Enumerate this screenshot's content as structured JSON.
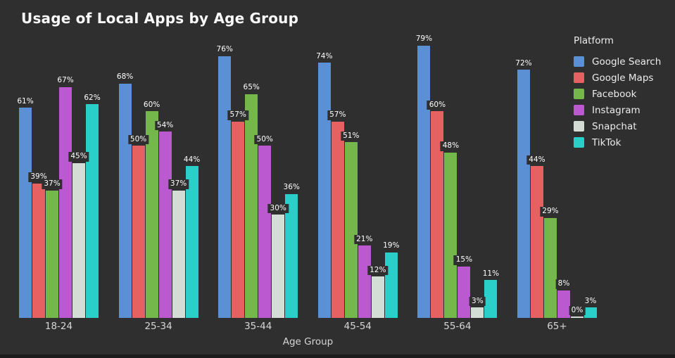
{
  "chart_data": {
    "type": "bar",
    "title": "Usage of Local Apps by Age Group",
    "xlabel": "Age Group",
    "legend_title": "Platform",
    "legend_position": "right",
    "grid": false,
    "ylim": [
      0,
      80
    ],
    "value_suffix": "%",
    "background_color": "#2f2f2f",
    "categories": [
      "18-24",
      "25-34",
      "35-44",
      "45-54",
      "55-64",
      "65+"
    ],
    "series": [
      {
        "name": "Google Search",
        "color": "#5b90d5",
        "values": [
          61,
          68,
          76,
          74,
          79,
          72
        ]
      },
      {
        "name": "Google Maps",
        "color": "#e66161",
        "values": [
          39,
          50,
          57,
          57,
          60,
          44
        ]
      },
      {
        "name": "Facebook",
        "color": "#74b84b",
        "values": [
          37,
          60,
          65,
          51,
          48,
          29
        ]
      },
      {
        "name": "Instagram",
        "color": "#bb5ad0",
        "values": [
          67,
          54,
          50,
          21,
          15,
          8
        ]
      },
      {
        "name": "Snapchat",
        "color": "#d4ddd5",
        "values": [
          45,
          37,
          30,
          12,
          3,
          0
        ]
      },
      {
        "name": "TikTok",
        "color": "#2bcfca",
        "values": [
          62,
          44,
          36,
          19,
          11,
          3
        ]
      }
    ]
  }
}
